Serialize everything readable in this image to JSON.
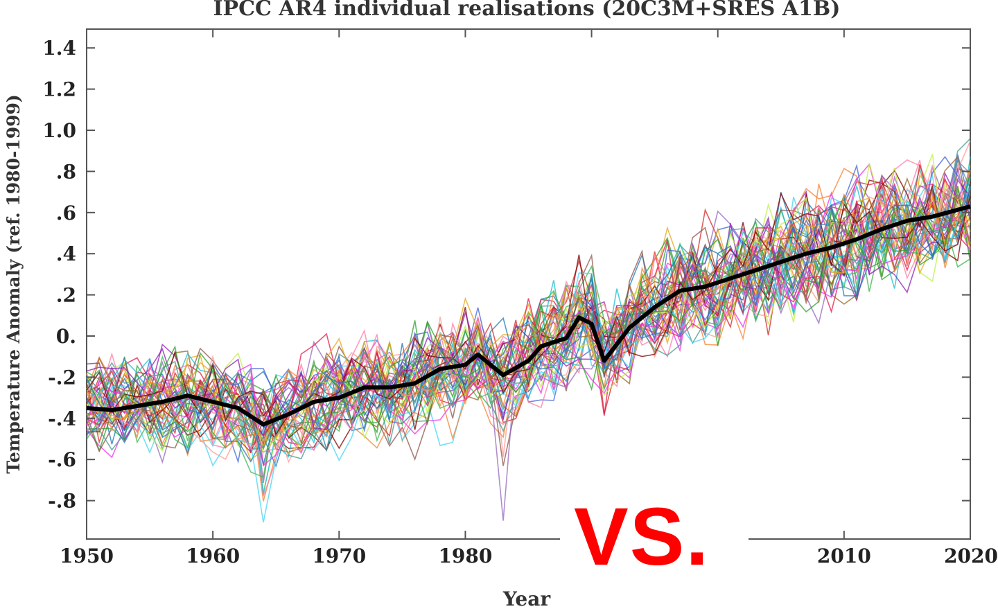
{
  "chart_data": {
    "type": "line",
    "title": "IPCC AR4 individual realisations (20C3M+SRES A1B)",
    "xlabel": "Year",
    "ylabel": "Temperature Anomaly (ref. 1980-1999)",
    "xlim": [
      1950,
      2020
    ],
    "ylim": [
      -1.0,
      1.5
    ],
    "x_ticks": [
      1950,
      1960,
      1970,
      1980,
      1990,
      2000,
      2010,
      2020
    ],
    "x_tick_labels": [
      "1950",
      "1960",
      "1970",
      "1980",
      "",
      "",
      "2010",
      "2020"
    ],
    "y_ticks": [
      1.4,
      1.2,
      1.0,
      0.8,
      0.6,
      0.4,
      0.2,
      0.0,
      -0.2,
      -0.4,
      -0.6,
      -0.8
    ],
    "y_tick_labels": [
      "1.4",
      "1.2",
      "1.0",
      ".8",
      ".6",
      ".4",
      ".2",
      "0.",
      "-.2",
      "-.4",
      "-.6",
      "-.8"
    ],
    "series": [
      {
        "role": "ensemble-mean",
        "color": "#000000",
        "points": [
          [
            1950,
            -0.35
          ],
          [
            1952,
            -0.36
          ],
          [
            1954,
            -0.34
          ],
          [
            1956,
            -0.32
          ],
          [
            1958,
            -0.29
          ],
          [
            1960,
            -0.32
          ],
          [
            1962,
            -0.35
          ],
          [
            1964,
            -0.43
          ],
          [
            1966,
            -0.38
          ],
          [
            1968,
            -0.32
          ],
          [
            1970,
            -0.3
          ],
          [
            1972,
            -0.25
          ],
          [
            1974,
            -0.25
          ],
          [
            1976,
            -0.23
          ],
          [
            1978,
            -0.16
          ],
          [
            1980,
            -0.14
          ],
          [
            1981,
            -0.09
          ],
          [
            1983,
            -0.19
          ],
          [
            1985,
            -0.12
          ],
          [
            1986,
            -0.05
          ],
          [
            1988,
            -0.01
          ],
          [
            1989,
            0.09
          ],
          [
            1990,
            0.06
          ],
          [
            1991,
            -0.12
          ],
          [
            1993,
            0.04
          ],
          [
            1995,
            0.14
          ],
          [
            1997,
            0.22
          ],
          [
            1999,
            0.24
          ],
          [
            2001,
            0.28
          ],
          [
            2003,
            0.32
          ],
          [
            2005,
            0.36
          ],
          [
            2007,
            0.4
          ],
          [
            2009,
            0.43
          ],
          [
            2011,
            0.47
          ],
          [
            2013,
            0.52
          ],
          [
            2015,
            0.56
          ],
          [
            2017,
            0.58
          ],
          [
            2020,
            0.63
          ]
        ]
      }
    ],
    "ensemble": {
      "description_visible": false,
      "count": 55,
      "colors": [
        "#e6194b",
        "#3cb44b",
        "#4363d8",
        "#f58231",
        "#911eb4",
        "#42d4f4",
        "#f032e6",
        "#bfef45",
        "#ff7aa8",
        "#469990",
        "#9a6324",
        "#e6a817",
        "#800000",
        "#2ca02c",
        "#1f77b4",
        "#d62728",
        "#9467bd",
        "#17becf",
        "#8c564b",
        "#ff9896"
      ]
    },
    "annotations": [
      {
        "text": "VS.",
        "color": "#ff0000"
      }
    ]
  }
}
